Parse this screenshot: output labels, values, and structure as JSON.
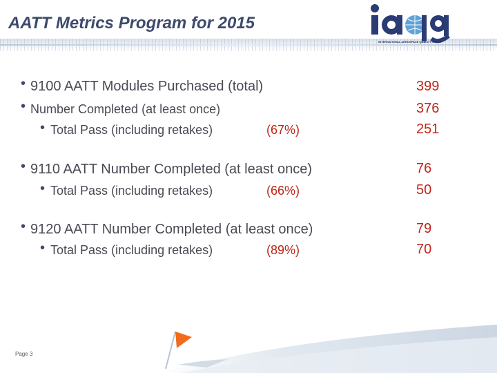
{
  "slide": {
    "title": "AATT Metrics Program for 2015",
    "page_label": "Page 3"
  },
  "logo": {
    "wordmark": "iaqg",
    "subtitle": "INTERNATIONAL AEROSPACE QUALITY GROUP",
    "colors": {
      "primary": "#2b3b73",
      "accent": "#5fa3d8"
    }
  },
  "rows": [
    {
      "level": 1,
      "label": "9100 AATT Modules Purchased (total)",
      "pct": "",
      "value": "399"
    },
    {
      "level": 1,
      "label": "Number Completed (at least once)",
      "pct": "",
      "value": "376"
    },
    {
      "level": 2,
      "label": "Total Pass (including retakes)",
      "pct": "(67%)",
      "value": "251"
    },
    {
      "level": 1,
      "label": "9110 AATT Number Completed (at least once)",
      "pct": "",
      "value": "76"
    },
    {
      "level": 2,
      "label": "Total Pass (including retakes)",
      "pct": "(66%)",
      "value": "50"
    },
    {
      "level": 1,
      "label": "9120 AATT Number Completed (at least once)",
      "pct": "",
      "value": "79"
    },
    {
      "level": 2,
      "label": "Total Pass (including retakes)",
      "pct": "(89%)",
      "value": "70"
    }
  ],
  "colors": {
    "title": "#3d4a6b",
    "value": "#c0251a",
    "text": "#4a4a55"
  }
}
